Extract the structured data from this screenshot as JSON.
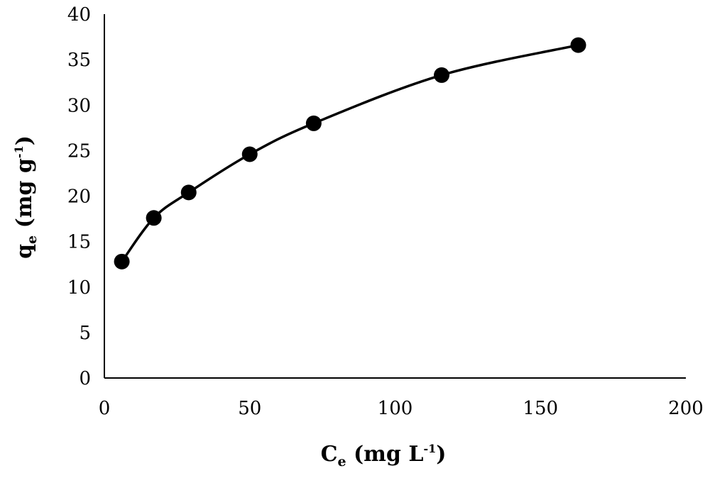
{
  "chart_data": {
    "type": "scatter",
    "title": "",
    "xlabel": {
      "main": "C",
      "sub": "e",
      "unit_pre": " (mg L",
      "sup": "-1",
      "unit_post": ")"
    },
    "ylabel": {
      "main": "q",
      "sub": "e",
      "unit_pre": " (mg g",
      "sup": "-1",
      "unit_post": ")"
    },
    "xlim": [
      0,
      200
    ],
    "ylim": [
      0,
      40
    ],
    "xticks": [
      0,
      50,
      100,
      150,
      200
    ],
    "yticks": [
      0,
      5,
      10,
      15,
      20,
      25,
      30,
      35,
      40
    ],
    "grid": false,
    "legend": "none",
    "marker": "filled-circle",
    "line": "smooth",
    "color": "#000000",
    "series": [
      {
        "x": [
          6,
          17,
          29,
          50,
          72,
          116,
          163
        ],
        "y": [
          12.8,
          17.6,
          20.4,
          24.6,
          28.0,
          33.3,
          36.6
        ]
      }
    ]
  }
}
